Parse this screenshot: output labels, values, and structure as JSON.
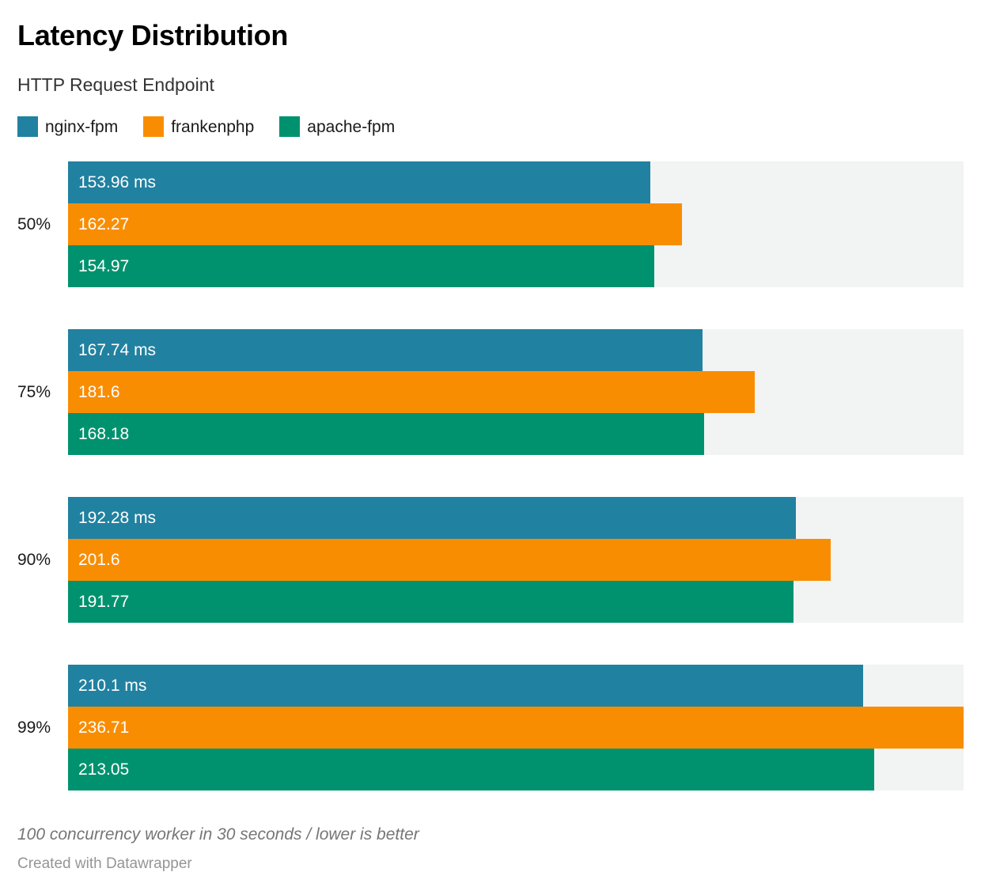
{
  "chart_data": {
    "type": "bar",
    "orientation": "horizontal",
    "title": "Latency Distribution",
    "subtitle": "HTTP Request Endpoint",
    "categories": [
      "50%",
      "75%",
      "90%",
      "99%"
    ],
    "series": [
      {
        "name": "nginx-fpm",
        "color": "#2181a0",
        "values": [
          153.96,
          167.74,
          192.28,
          210.1
        ],
        "bar_labels": [
          "153.96 ms",
          "167.74 ms",
          "192.28 ms",
          "210.1 ms"
        ]
      },
      {
        "name": "frankenphp",
        "color": "#f98d02",
        "values": [
          162.27,
          181.6,
          201.6,
          236.71
        ],
        "bar_labels": [
          "162.27",
          "181.6",
          "201.6",
          "236.71"
        ]
      },
      {
        "name": "apache-fpm",
        "color": "#00926e",
        "values": [
          154.97,
          168.18,
          191.77,
          213.05
        ],
        "bar_labels": [
          "154.97",
          "168.18",
          "191.77",
          "213.05"
        ]
      }
    ],
    "unit": "ms",
    "xlim": [
      0,
      236.71
    ],
    "grid": false,
    "legend_position": "top",
    "track_color": "#f2f3f3",
    "value_label_color": "#ffffff",
    "note": "100 concurrency worker in 30 seconds / lower is better"
  },
  "attribution": "Created with Datawrapper"
}
